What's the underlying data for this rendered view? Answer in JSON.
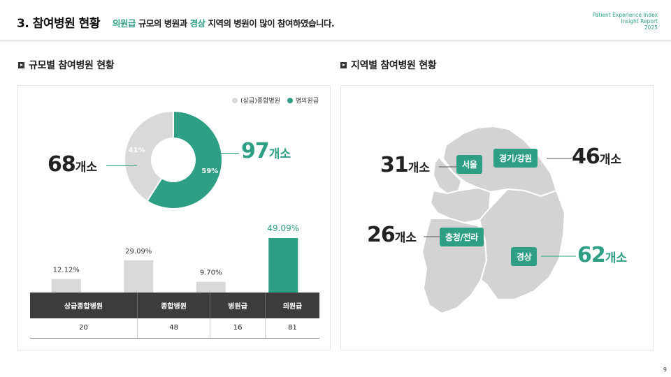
{
  "header": {
    "title": "3. 참여병원 현황",
    "subtitle_hl1": "의원급",
    "subtitle_part1": " 규모의 병원과 ",
    "subtitle_hl2": "경상",
    "subtitle_part2": " 지역의 병원이 많이 참여하였습니다.",
    "brand_line1": "Patient Experience Index",
    "brand_line2": "Insight Report",
    "brand_line3": "2025"
  },
  "left_section": {
    "title": "규모별 참여병원 현황",
    "left_count": "68",
    "left_unit": "개소",
    "right_count": "97",
    "right_unit": "개소"
  },
  "right_section": {
    "title": "지역별 참여병원 현황",
    "regions": [
      {
        "name": "서울",
        "count": "31",
        "unit": "개소"
      },
      {
        "name": "경기/강원",
        "count": "46",
        "unit": "개소"
      },
      {
        "name": "충청/전라",
        "count": "26",
        "unit": "개소"
      },
      {
        "name": "경상",
        "count": "62",
        "unit": "개소"
      }
    ]
  },
  "colors": {
    "accent": "#2e9e85",
    "gray": "#d9d9d9",
    "dark": "#3c3c3c"
  },
  "chart_data": [
    {
      "type": "pie",
      "labels": [
        "(상급)종합병원",
        "병의원급"
      ],
      "values": [
        41,
        59
      ],
      "value_labels": [
        "41%",
        "59%"
      ],
      "colors": [
        "#d9d9d9",
        "#2e9e85"
      ]
    },
    {
      "type": "bar",
      "categories": [
        "상급종합병원",
        "종합병원",
        "병원급",
        "의원급"
      ],
      "values": [
        12.12,
        29.09,
        9.7,
        49.09
      ],
      "value_labels": [
        "12.12%",
        "29.09%",
        "9.70%",
        "49.09%"
      ],
      "counts": [
        "20",
        "48",
        "16",
        "81"
      ],
      "colors": [
        "#d9d9d9",
        "#d9d9d9",
        "#d9d9d9",
        "#2e9e85"
      ]
    }
  ],
  "page_number": "9"
}
